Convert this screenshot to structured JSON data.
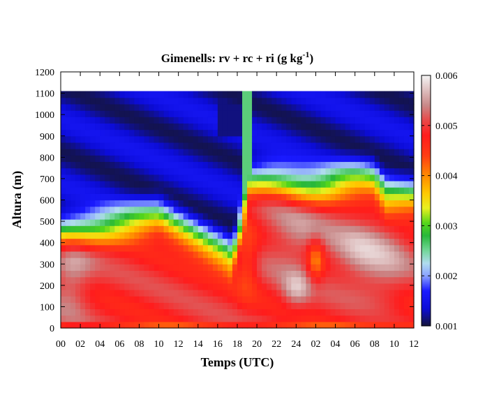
{
  "chart_data": {
    "type": "heatmap",
    "title": {
      "main": "Gimenells: rv + rc + ri (g kg",
      "superscript": "-1",
      "close": ")"
    },
    "xlabel": "Temps (UTC)",
    "ylabel": "Altura (m)",
    "x_tick_labels": [
      "00",
      "02",
      "04",
      "06",
      "08",
      "10",
      "12",
      "14",
      "16",
      "18",
      "20",
      "22",
      "24",
      "02",
      "04",
      "06",
      "08",
      "10",
      "12"
    ],
    "x_range_hours": [
      0,
      36
    ],
    "y_ticks": [
      0,
      100,
      200,
      300,
      400,
      500,
      600,
      700,
      800,
      900,
      1000,
      1100,
      1200
    ],
    "ylim": [
      0,
      1200
    ],
    "data_top_altitude": 1110,
    "colorbar": {
      "min": 0.001,
      "max": 0.006,
      "tick_labels": [
        "0.001",
        "0.002",
        "0.003",
        "0.004",
        "0.005",
        "0.006"
      ],
      "colors": [
        [
          0.0,
          "#14143a"
        ],
        [
          0.07,
          "#0c0cd8"
        ],
        [
          0.14,
          "#1a1aff"
        ],
        [
          0.2,
          "#8aa2ff"
        ],
        [
          0.25,
          "#b0dcee"
        ],
        [
          0.3,
          "#74d79a"
        ],
        [
          0.36,
          "#28b83a"
        ],
        [
          0.41,
          "#55d61a"
        ],
        [
          0.47,
          "#e8f020"
        ],
        [
          0.53,
          "#ffc800"
        ],
        [
          0.6,
          "#ff8a00"
        ],
        [
          0.68,
          "#ff3c14"
        ],
        [
          0.76,
          "#ff1c1c"
        ],
        [
          0.82,
          "#e84848"
        ],
        [
          0.88,
          "#c88888"
        ],
        [
          1.0,
          "#f4f4f4"
        ]
      ]
    }
  }
}
